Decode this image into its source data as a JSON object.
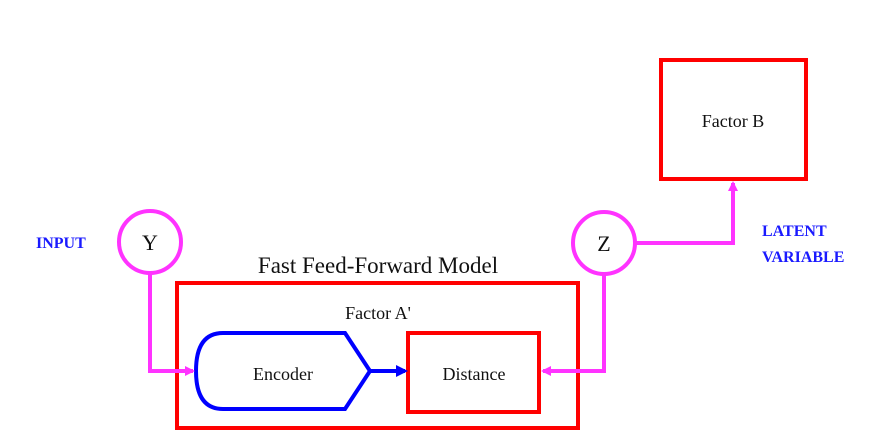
{
  "colors": {
    "red": "#ff0000",
    "magenta": "#ff33ff",
    "blue": "#0000ff",
    "label_blue": "#1a1aff",
    "text": "#111111"
  },
  "labels": {
    "input": "INPUT",
    "latent_line1": "LATENT",
    "latent_line2": "VARIABLE",
    "y": "Y",
    "z": "Z",
    "model_title": "Fast Feed-Forward Model",
    "factor_a": "Factor A'",
    "factor_b": "Factor B",
    "encoder": "Encoder",
    "distance": "Distance"
  }
}
